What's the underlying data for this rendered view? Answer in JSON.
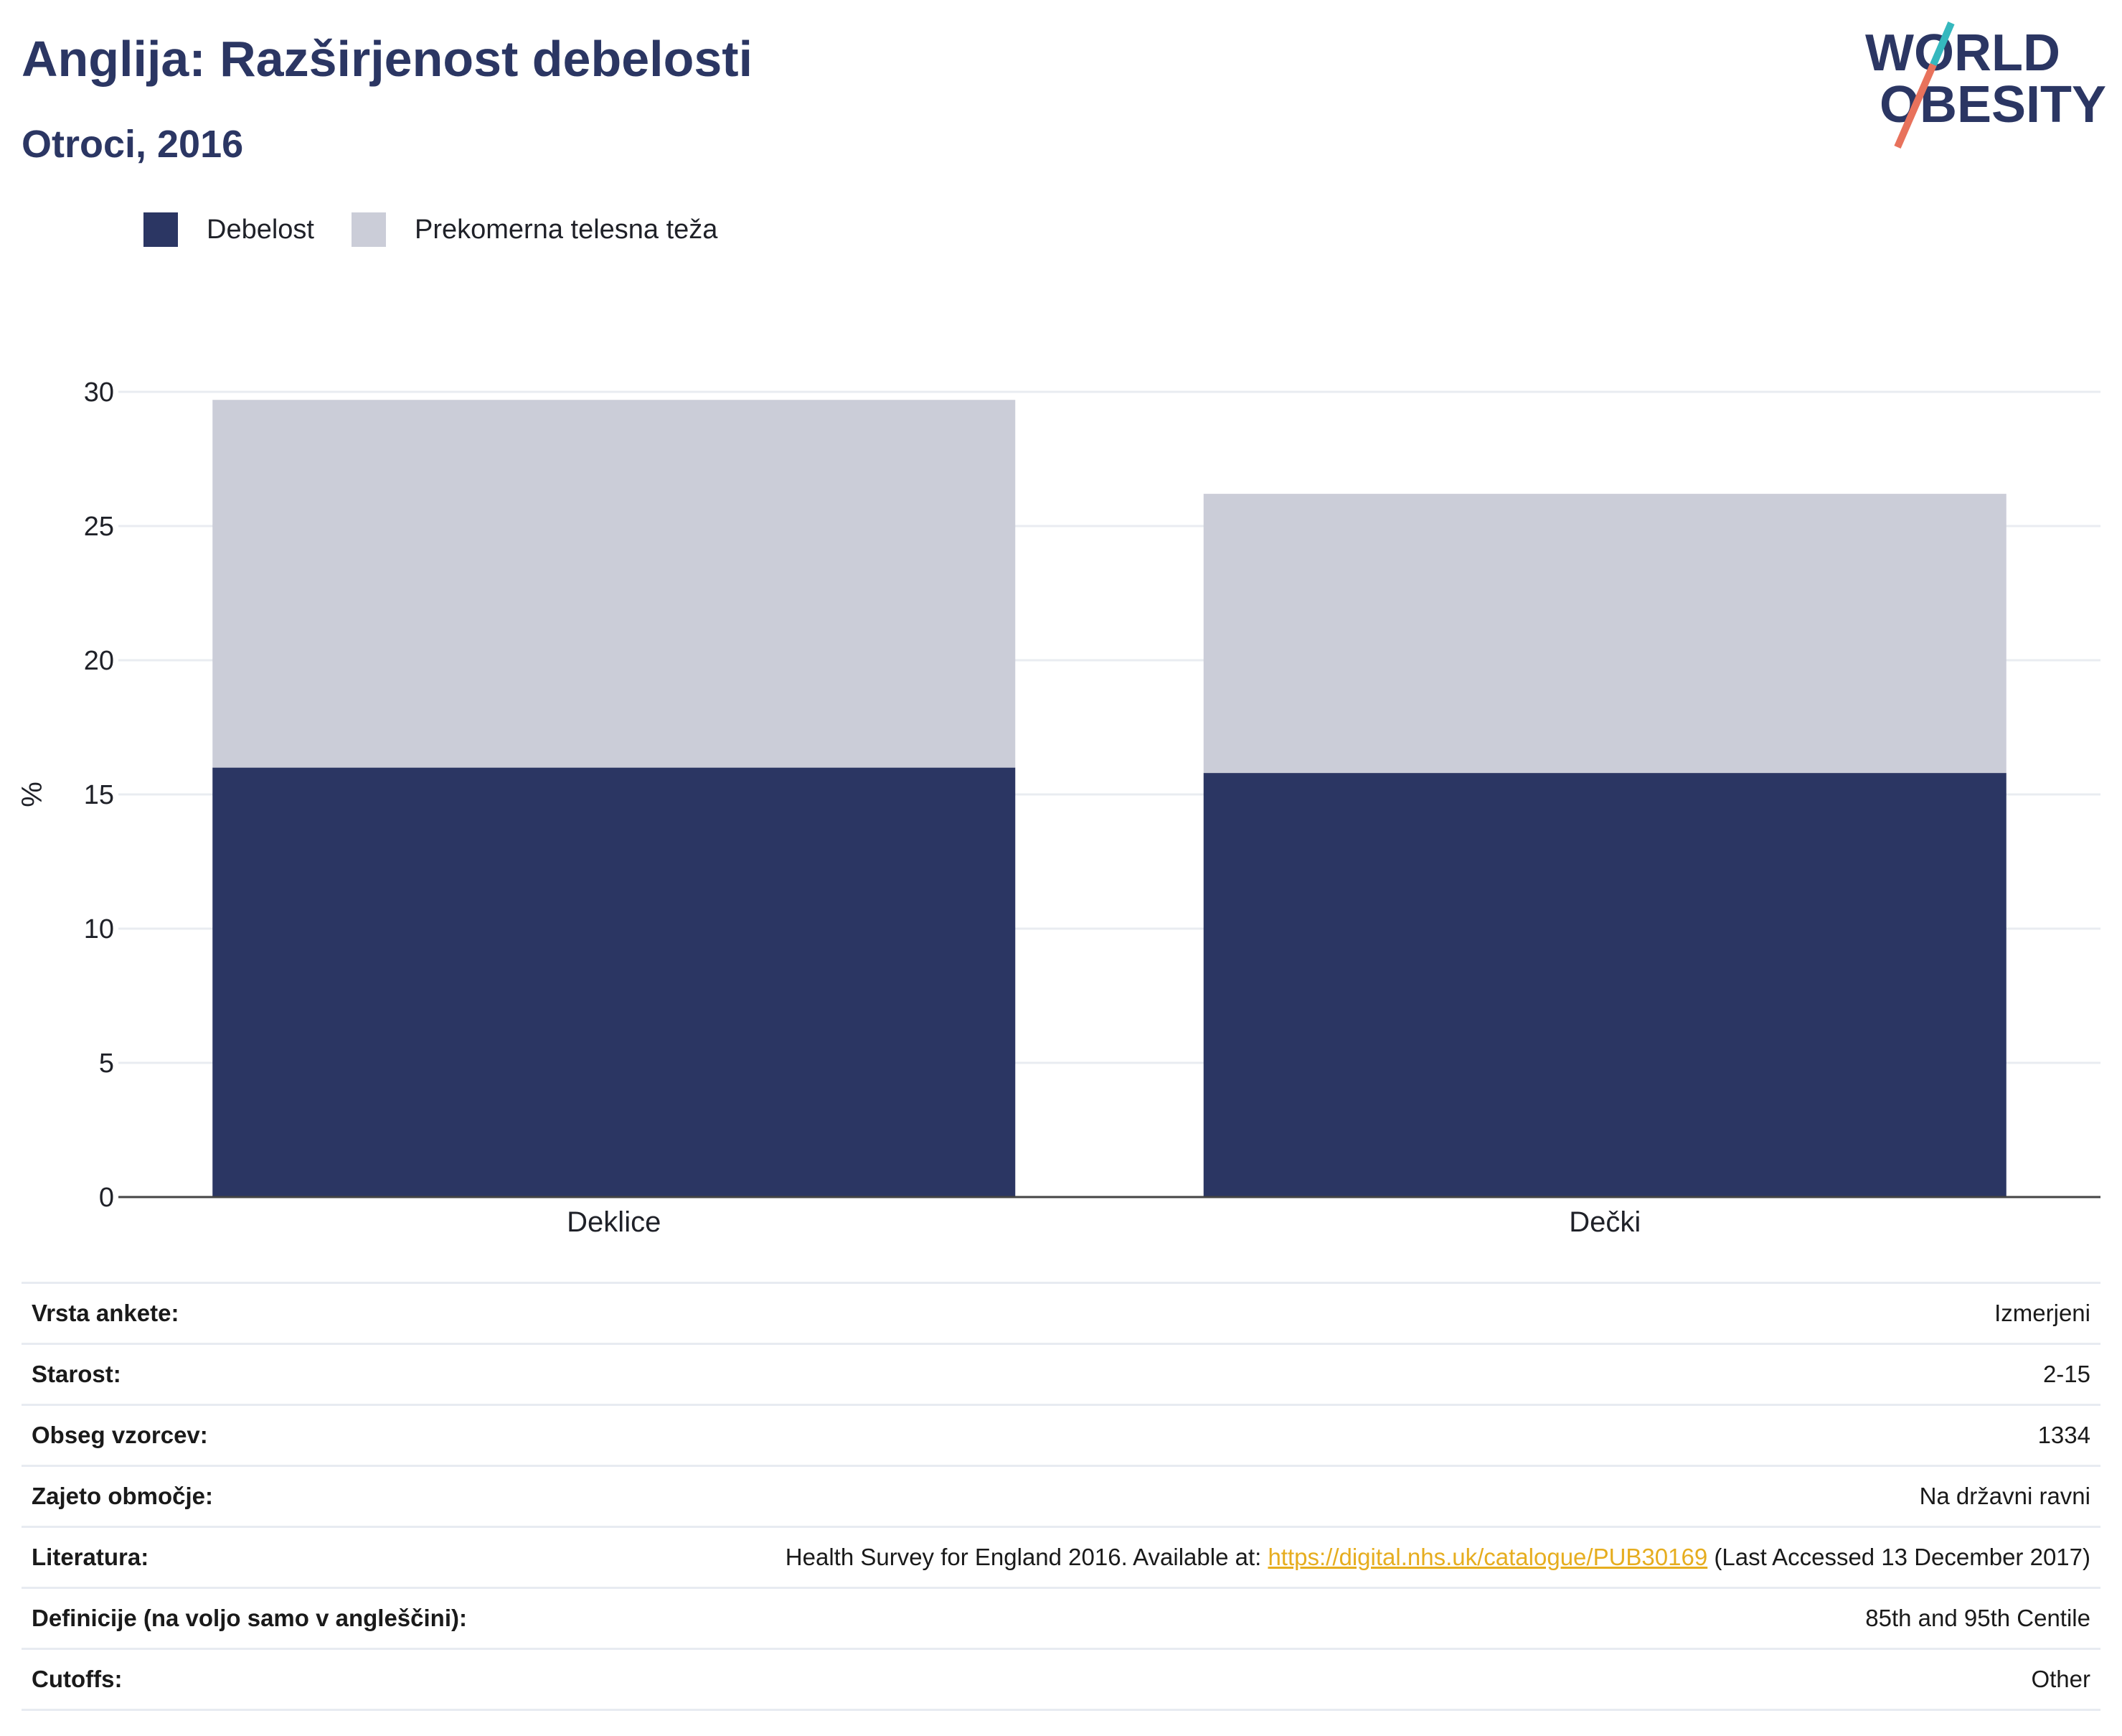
{
  "header": {
    "title": "Anglija: Razširjenost debelosti",
    "subtitle": "Otroci, 2016"
  },
  "logo": {
    "line1": "WORLD",
    "line2": "OBESITY"
  },
  "colors": {
    "obesity": "#2b3663",
    "overweight": "#cbcdd8",
    "title": "#2b3663",
    "link": "#e6ad1f",
    "grid": "#e9ecf1"
  },
  "chart_data": {
    "type": "bar",
    "stacked": true,
    "categories": [
      "Deklice",
      "Dečki"
    ],
    "series": [
      {
        "name": "Debelost",
        "values": [
          16.0,
          15.8
        ]
      },
      {
        "name": "Prekomerna telesna teža",
        "values": [
          13.7,
          10.4
        ]
      }
    ],
    "ylabel": "%",
    "ylim": [
      0,
      30
    ],
    "yticks": [
      0,
      5,
      10,
      15,
      20,
      25,
      30
    ],
    "grid": true,
    "legend_position": "top-left"
  },
  "info": {
    "rows": [
      {
        "key": "Vrsta ankete:",
        "value": "Izmerjeni"
      },
      {
        "key": "Starost:",
        "value": "2-15"
      },
      {
        "key": "Obseg vzorcev:",
        "value": "1334"
      },
      {
        "key": "Zajeto območje:",
        "value": "Na državni ravni"
      },
      {
        "key": "Literatura:",
        "value_prefix": "Health Survey for England 2016. Available at: ",
        "link": "https://digital.nhs.uk/catalogue/PUB30169",
        "value_suffix": " (Last Accessed 13 December 2017)"
      },
      {
        "key": "Definicije (na voljo samo v angleščini):",
        "value": "85th and 95th Centile"
      },
      {
        "key": "Cutoffs:",
        "value": "Other"
      }
    ]
  }
}
